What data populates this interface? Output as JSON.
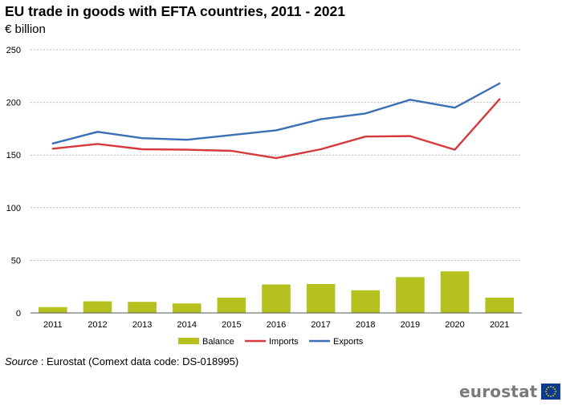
{
  "chart_data": {
    "type": "bar+line",
    "title": "EU trade in goods with EFTA countries, 2011 - 2021",
    "subtitle": "€ billion",
    "categories": [
      "2011",
      "2012",
      "2013",
      "2014",
      "2015",
      "2016",
      "2017",
      "2018",
      "2019",
      "2020",
      "2021"
    ],
    "ylim": [
      0,
      250
    ],
    "yticks": [
      0,
      50,
      100,
      150,
      200,
      250
    ],
    "grid": true,
    "legend_position": "bottom",
    "series": [
      {
        "name": "Balance",
        "kind": "bar",
        "color": "#b5c11f",
        "values": [
          5.5,
          11,
          10.5,
          9,
          14.5,
          27,
          27.5,
          21.5,
          34,
          39.5,
          14.5
        ]
      },
      {
        "name": "Imports",
        "kind": "line",
        "color": "#d6393d",
        "values": [
          156,
          160.5,
          155.5,
          155,
          154,
          147,
          155.5,
          167.5,
          168,
          155,
          203
        ]
      },
      {
        "name": "Exports",
        "kind": "line",
        "color": "#3a6fb7",
        "values": [
          161,
          172,
          166,
          164.5,
          169,
          173.5,
          184,
          189.5,
          202.5,
          195,
          218
        ]
      }
    ]
  },
  "source": {
    "label": "Source",
    "text": " : Eurostat (Comext data code: DS-018995)"
  },
  "logo": {
    "text": "eurostat"
  }
}
